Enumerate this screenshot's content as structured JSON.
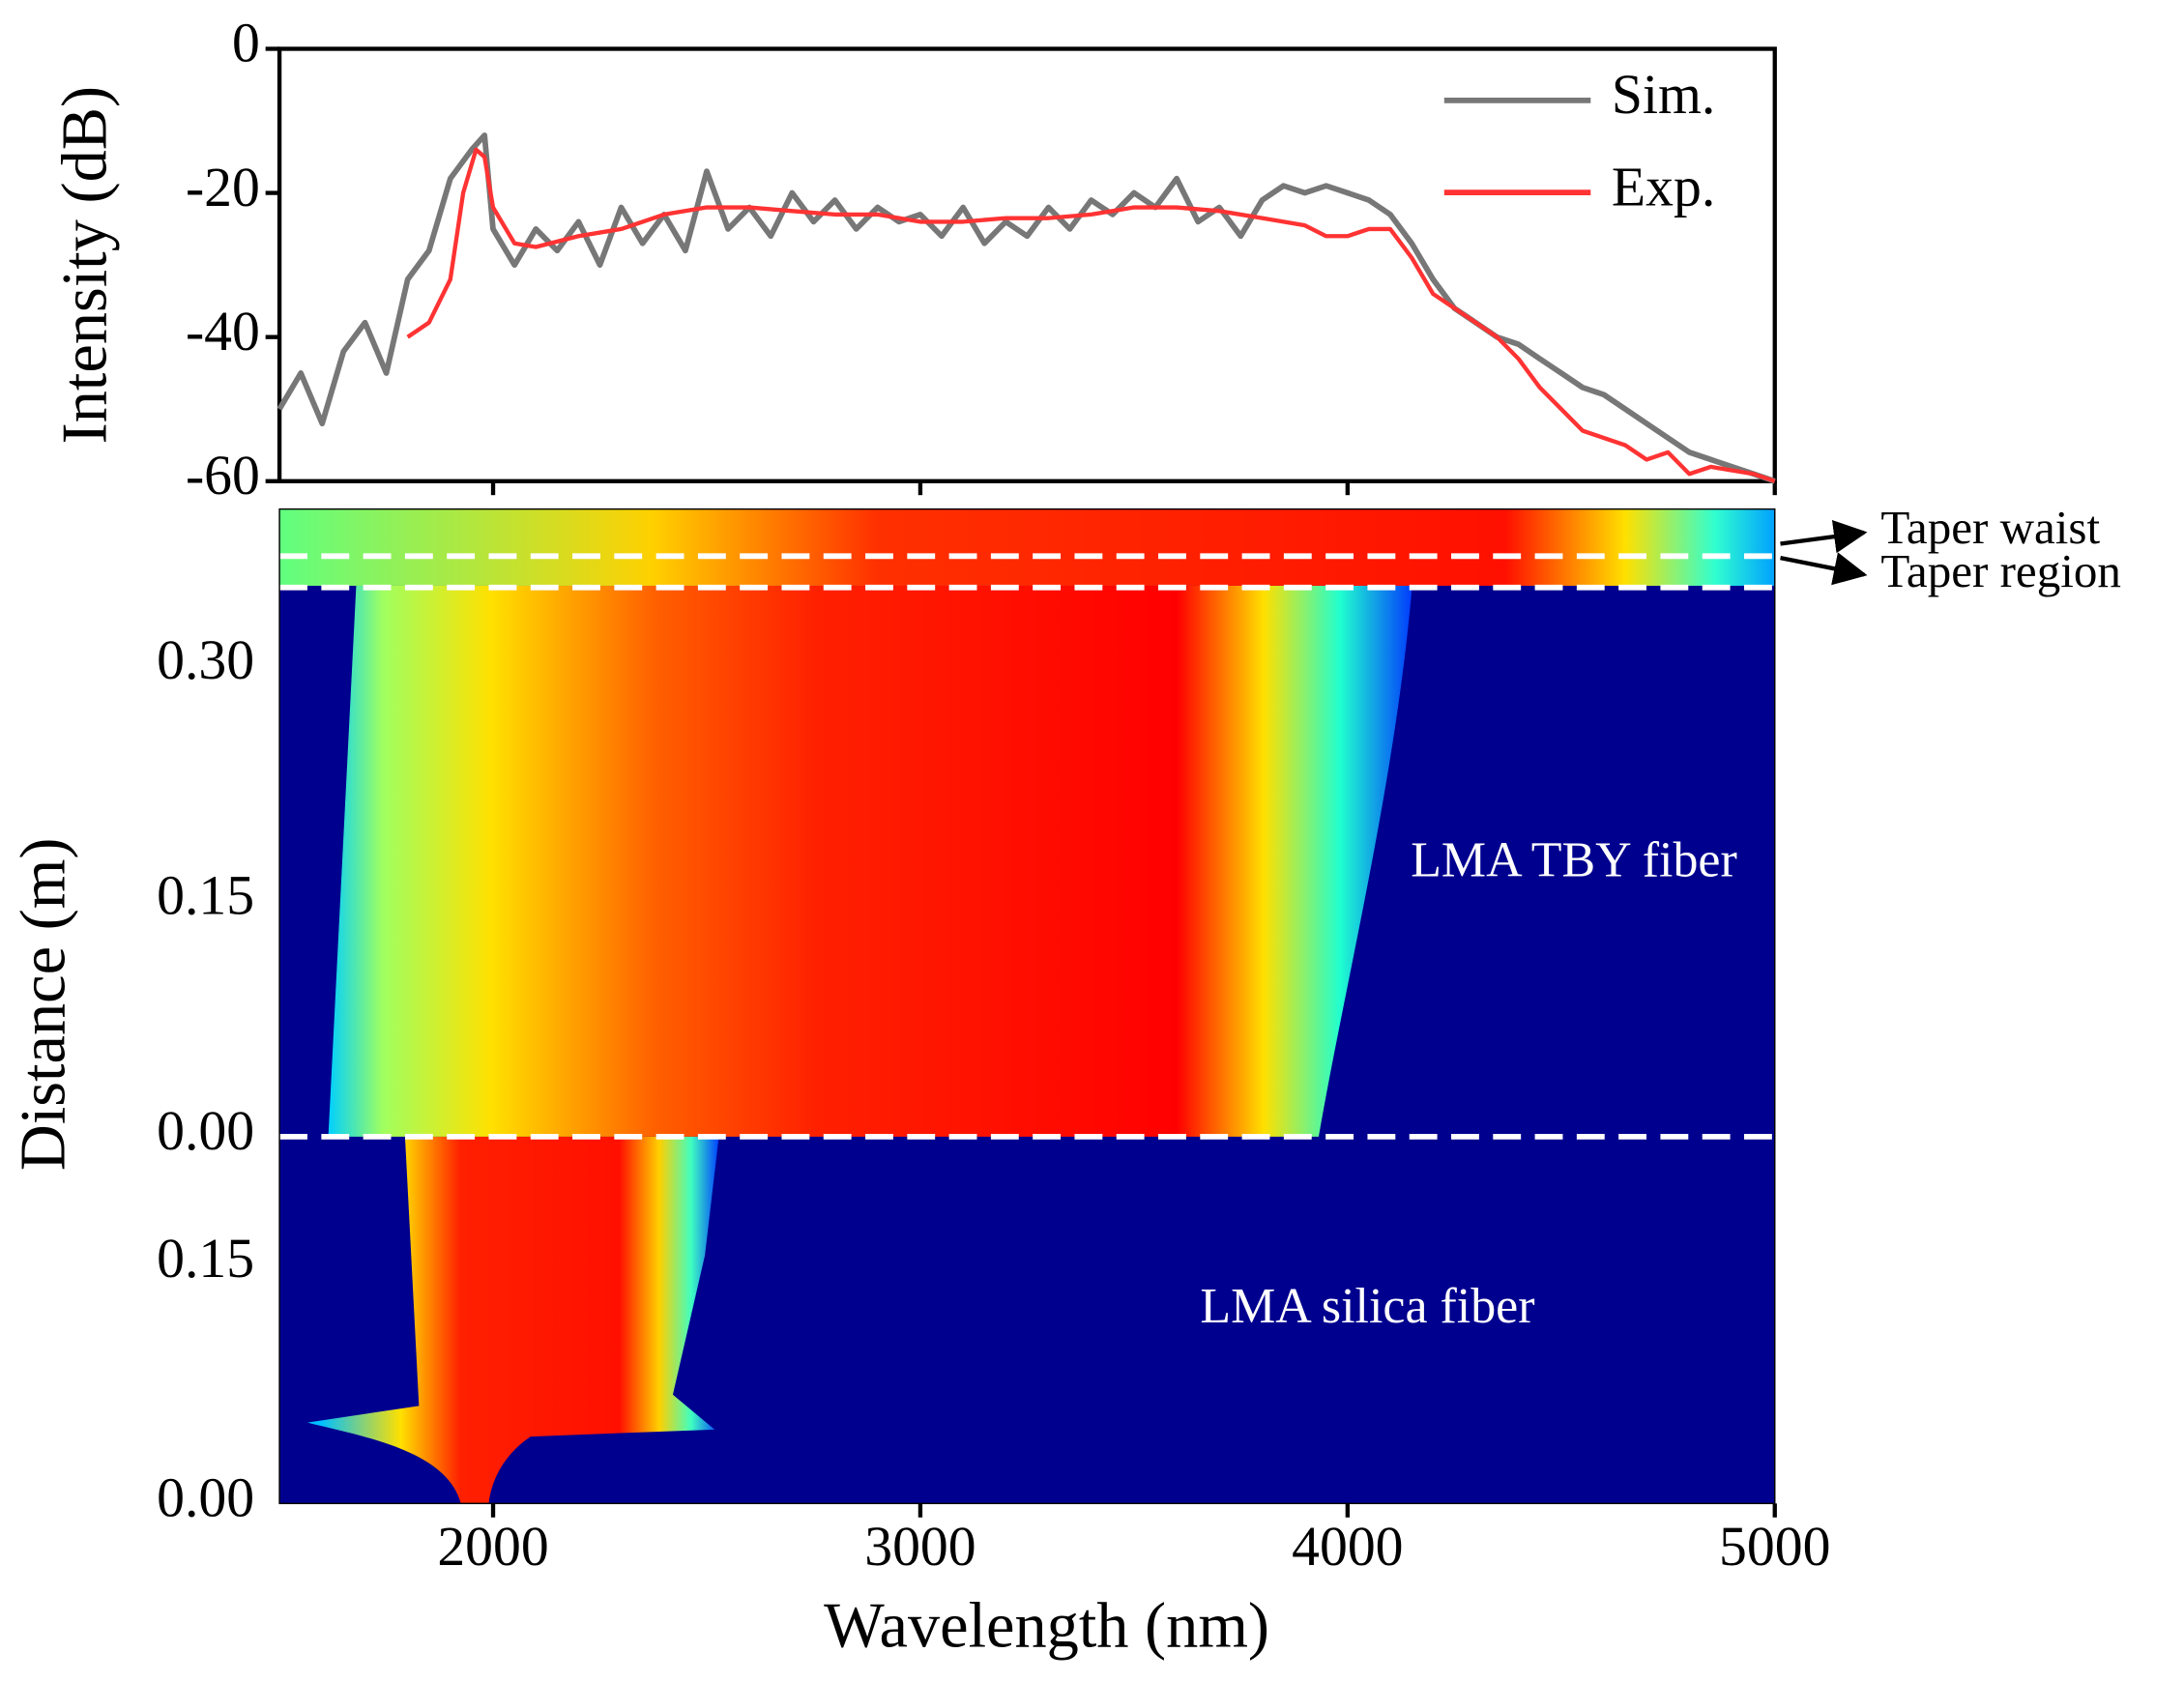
{
  "chart_data": [
    {
      "type": "line",
      "ylabel": "Intensity (dB)",
      "xlim": [
        1500,
        5000
      ],
      "xticks": [
        2000,
        3000,
        4000,
        5000
      ],
      "ylim": [
        -60,
        0
      ],
      "yticks": [
        0,
        -20,
        -40,
        -60
      ],
      "legend": "upper right",
      "series": [
        {
          "name": "Sim.",
          "color": "#777777",
          "x": [
            1500,
            1550,
            1600,
            1650,
            1700,
            1750,
            1800,
            1850,
            1900,
            1950,
            1980,
            2000,
            2050,
            2100,
            2150,
            2200,
            2250,
            2300,
            2350,
            2400,
            2450,
            2500,
            2550,
            2600,
            2650,
            2700,
            2750,
            2800,
            2850,
            2900,
            2950,
            3000,
            3050,
            3100,
            3150,
            3200,
            3250,
            3300,
            3350,
            3400,
            3450,
            3500,
            3550,
            3600,
            3650,
            3700,
            3750,
            3800,
            3850,
            3900,
            3950,
            4000,
            4050,
            4100,
            4150,
            4200,
            4250,
            4300,
            4350,
            4400,
            4450,
            4500,
            4550,
            4600,
            4650,
            4700,
            4750,
            4800,
            4850,
            4900,
            4950,
            5000
          ],
          "values": [
            -50,
            -45,
            -52,
            -42,
            -38,
            -45,
            -32,
            -28,
            -18,
            -14,
            -12,
            -25,
            -30,
            -25,
            -28,
            -24,
            -30,
            -22,
            -27,
            -23,
            -28,
            -17,
            -25,
            -22,
            -26,
            -20,
            -24,
            -21,
            -25,
            -22,
            -24,
            -23,
            -26,
            -22,
            -27,
            -24,
            -26,
            -22,
            -25,
            -21,
            -23,
            -20,
            -22,
            -18,
            -24,
            -22,
            -26,
            -21,
            -19,
            -20,
            -19,
            -20,
            -21,
            -23,
            -27,
            -32,
            -36,
            -38,
            -40,
            -41,
            -43,
            -45,
            -47,
            -48,
            -50,
            -52,
            -54,
            -56,
            -57,
            -58,
            -59,
            -60
          ]
        },
        {
          "name": "Exp.",
          "color": "#ff3333",
          "x": [
            1800,
            1850,
            1900,
            1930,
            1960,
            1980,
            2000,
            2050,
            2100,
            2200,
            2300,
            2400,
            2500,
            2600,
            2700,
            2800,
            2900,
            3000,
            3100,
            3200,
            3300,
            3400,
            3500,
            3600,
            3700,
            3800,
            3900,
            3950,
            4000,
            4050,
            4100,
            4150,
            4200,
            4250,
            4300,
            4350,
            4400,
            4450,
            4500,
            4550,
            4600,
            4650,
            4700,
            4750,
            4800,
            4850,
            4900,
            4950,
            5000
          ],
          "values": [
            -40,
            -38,
            -32,
            -20,
            -14,
            -15,
            -22,
            -27,
            -27.5,
            -26,
            -25,
            -23,
            -22,
            -22,
            -22.5,
            -23,
            -23,
            -24,
            -24,
            -23.5,
            -23.5,
            -23,
            -22,
            -22,
            -22.5,
            -23.5,
            -24.5,
            -26,
            -26,
            -25,
            -25,
            -29,
            -34,
            -36,
            -38,
            -40,
            -43,
            -47,
            -50,
            -53,
            -54,
            -55,
            -57,
            -56,
            -59,
            -58,
            -58.5,
            -59,
            -60
          ]
        }
      ]
    },
    {
      "type": "heatmap",
      "xlabel": "Wavelength (nm)",
      "ylabel": "Distance (m)",
      "xlim": [
        1500,
        5000
      ],
      "xticks": [
        2000,
        3000,
        4000,
        5000
      ],
      "segments": [
        {
          "label": "LMA silica fiber",
          "ylim": [
            0,
            0.23
          ],
          "yticks": [
            {
              "value": 0,
              "label": "0.00"
            },
            {
              "value": 0.15,
              "label": "0.15"
            }
          ]
        },
        {
          "label": "LMA TBY fiber",
          "ylim": [
            0,
            0.4
          ],
          "yticks": [
            {
              "value": 0,
              "label": "0.00"
            },
            {
              "value": 0.15,
              "label": "0.15"
            },
            {
              "value": 0.3,
              "label": "0.30"
            }
          ],
          "boundaries": [
            0.35,
            0.37
          ],
          "annotations": [
            "Taper region",
            "Taper waist"
          ]
        }
      ]
    }
  ]
}
